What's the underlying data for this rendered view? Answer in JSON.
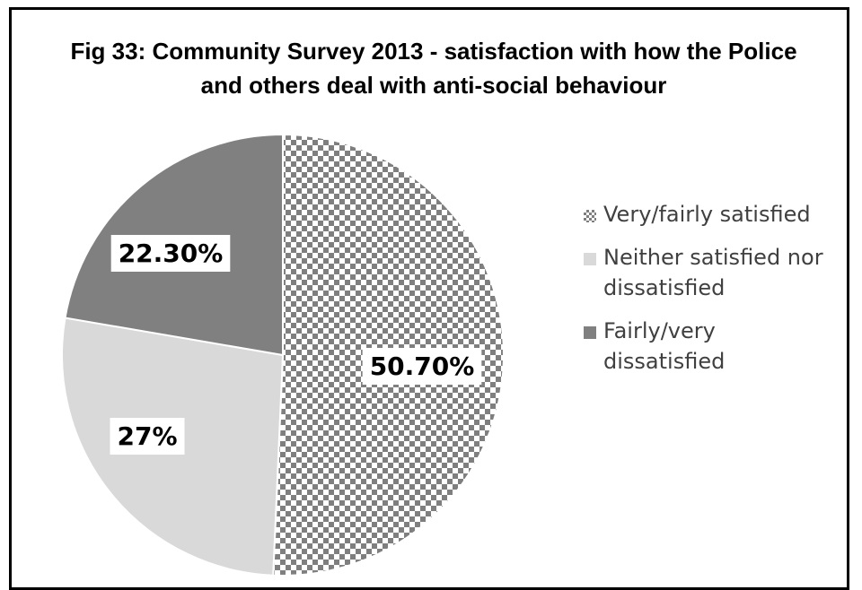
{
  "chart_data": {
    "type": "pie",
    "title": "Fig 33: Community Survey 2013 - satisfaction with how the Police and others deal with anti-social behaviour",
    "title_lines": [
      "Fig 33: Community Survey 2013 - satisfaction with how the Police",
      "and others deal with anti-social behaviour"
    ],
    "categories": [
      "Very/fairly satisfied",
      "Neither satisfied nor dissatisfied",
      "Fairly/very dissatisfied"
    ],
    "values": [
      50.7,
      27,
      22.3
    ],
    "data_labels": [
      "50.70%",
      "27%",
      "22.30%"
    ],
    "legend_position": "right",
    "legend_lines": [
      [
        "Very/fairly satisfied"
      ],
      [
        "Neither satisfied nor",
        "dissatisfied"
      ],
      [
        "Fairly/very",
        "dissatisfied"
      ]
    ],
    "colors": [
      "#7f7f7f",
      "#d9d9d9",
      "#808080"
    ],
    "patterns": [
      "checkerboard",
      "solid",
      "solid"
    ]
  }
}
